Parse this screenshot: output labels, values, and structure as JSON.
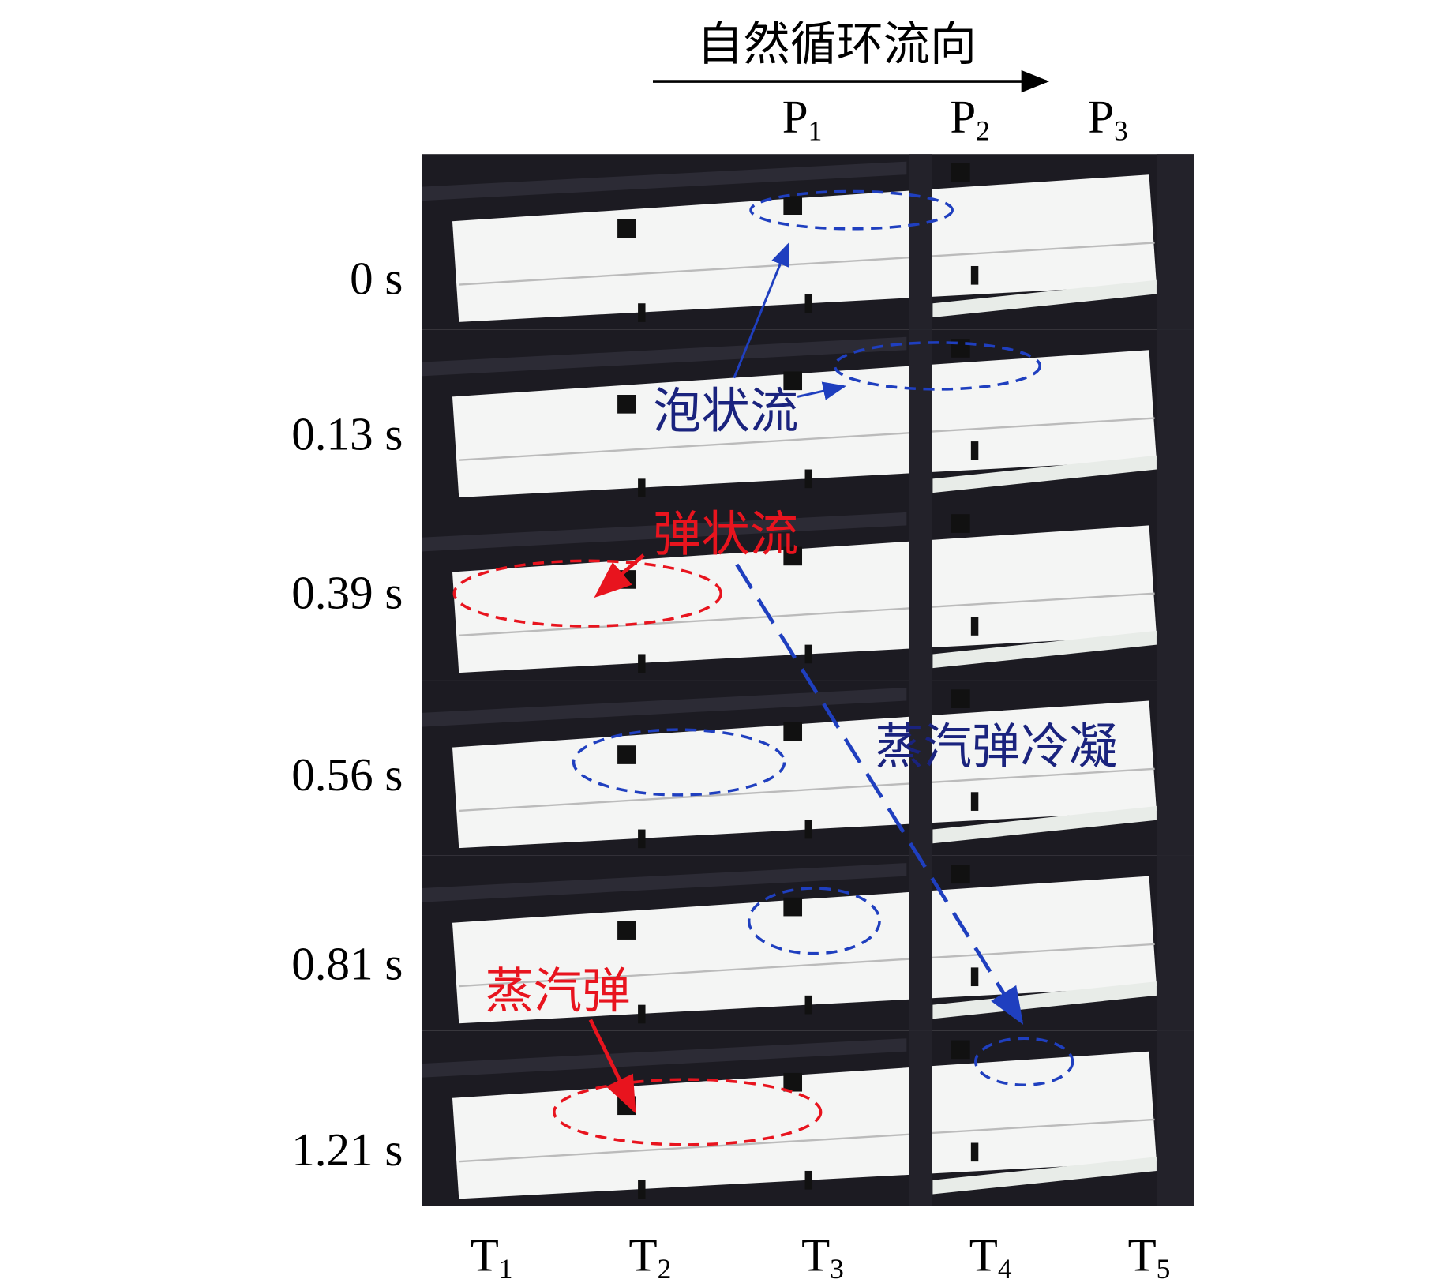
{
  "title": "自然循环流向",
  "pressure_labels": [
    {
      "base": "P",
      "sub": "1"
    },
    {
      "base": "P",
      "sub": "2"
    },
    {
      "base": "P",
      "sub": "3"
    }
  ],
  "temperature_labels": [
    {
      "base": "T",
      "sub": "1"
    },
    {
      "base": "T",
      "sub": "2"
    },
    {
      "base": "T",
      "sub": "3"
    },
    {
      "base": "T",
      "sub": "4"
    },
    {
      "base": "T",
      "sub": "5"
    }
  ],
  "time_labels": [
    "0 s",
    "0.13 s",
    "0.39 s",
    "0.56 s",
    "0.81 s",
    "1.21 s"
  ],
  "annotations": {
    "bubbly_flow": "泡状流",
    "slug_flow": "弹状流",
    "slug_condensation": "蒸汽弹冷凝",
    "steam_slug": "蒸汽弹"
  }
}
